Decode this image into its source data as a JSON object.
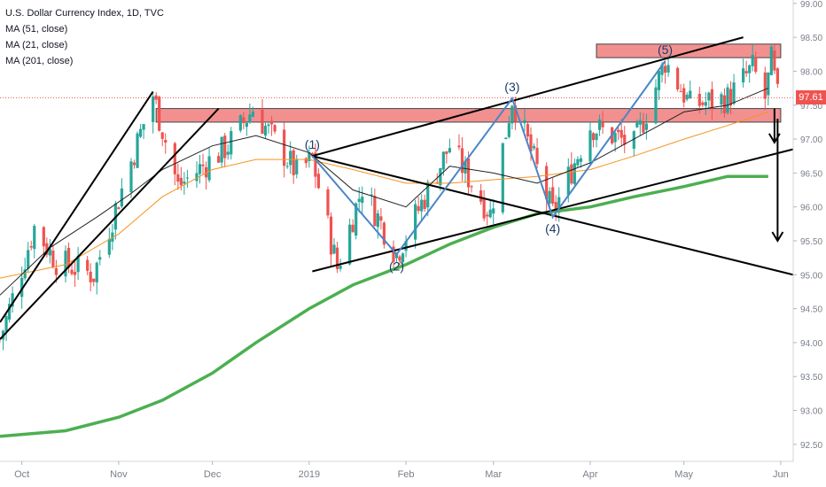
{
  "legend": {
    "title": "U.S. Dollar Currency Index, 1D, TVC",
    "ma1": "MA (51, close)",
    "ma2": "MA (21, close)",
    "ma3": "MA (201, close)"
  },
  "last_price": "97.61",
  "colors": {
    "up": "#26a69a",
    "down": "#ef5350",
    "ma51": "#f7931e",
    "ma21": "#222222",
    "ma201": "#4caf50",
    "wave": "#4a86c5",
    "zone": "#f07c7c",
    "trend": "#000000",
    "axis_text": "#7a7f8a"
  },
  "chart_data": {
    "type": "candlestick",
    "title": "U.S. Dollar Currency Index, 1D, TVC",
    "series": [
      {
        "name": "MA (51, close)",
        "style": "line",
        "color": "#f7931e",
        "x": [
          "2018-09-24",
          "2018-10-15",
          "2018-11-01",
          "2018-11-15",
          "2018-12-01",
          "2018-12-15",
          "2019-01-01",
          "2019-01-15",
          "2019-02-01",
          "2019-02-15",
          "2019-03-01",
          "2019-03-15",
          "2019-04-01",
          "2019-04-15",
          "2019-05-01",
          "2019-05-15",
          "2019-05-28"
        ],
        "y": [
          94.95,
          95.15,
          95.6,
          96.15,
          96.55,
          96.7,
          96.7,
          96.55,
          96.35,
          96.35,
          96.4,
          96.45,
          96.55,
          96.75,
          97.0,
          97.2,
          97.4
        ]
      },
      {
        "name": "MA (21, close)",
        "style": "line",
        "color": "#222222",
        "x": [
          "2018-09-24",
          "2018-10-10",
          "2018-10-25",
          "2018-11-05",
          "2018-11-15",
          "2018-12-01",
          "2018-12-15",
          "2019-01-01",
          "2019-01-15",
          "2019-02-01",
          "2019-02-15",
          "2019-03-01",
          "2019-03-15",
          "2019-04-01",
          "2019-04-15",
          "2019-05-01",
          "2019-05-15",
          "2019-05-28"
        ],
        "y": [
          94.7,
          95.4,
          95.85,
          96.2,
          96.55,
          96.9,
          97.05,
          96.8,
          96.25,
          96.0,
          96.6,
          96.5,
          96.35,
          96.65,
          97.0,
          97.4,
          97.5,
          97.75
        ]
      },
      {
        "name": "MA (201, close)",
        "style": "line",
        "color": "#4caf50",
        "x": [
          "2018-09-24",
          "2018-10-15",
          "2018-11-01",
          "2018-11-15",
          "2018-12-01",
          "2018-12-15",
          "2019-01-01",
          "2019-01-15",
          "2019-02-01",
          "2019-02-15",
          "2019-03-01",
          "2019-03-15",
          "2019-04-01",
          "2019-04-15",
          "2019-05-01",
          "2019-05-15",
          "2019-05-28"
        ],
        "y": [
          92.62,
          92.7,
          92.9,
          93.15,
          93.55,
          94.0,
          94.5,
          94.85,
          95.15,
          95.45,
          95.7,
          95.9,
          96.0,
          96.15,
          96.3,
          96.45,
          96.45
        ]
      }
    ],
    "waves": [
      {
        "label": "(1)",
        "x": "2019-01-02",
        "y": 96.75
      },
      {
        "label": "(2)",
        "x": "2019-01-29",
        "y": 95.3
      },
      {
        "label": "(3)",
        "x": "2019-03-07",
        "y": 97.6
      },
      {
        "label": "(4)",
        "x": "2019-03-20",
        "y": 95.85
      },
      {
        "label": "(5)",
        "x": "2019-04-25",
        "y": 98.15
      }
    ],
    "resistance_zones": [
      {
        "x": [
          "2018-11-13",
          "2019-06-01"
        ],
        "y": [
          97.25,
          97.45
        ]
      },
      {
        "x": [
          "2019-04-03",
          "2019-06-01"
        ],
        "y": [
          98.2,
          98.4
        ]
      }
    ],
    "xlabel": "",
    "ylabel": "",
    "x_ticks": [
      "Oct",
      "Nov",
      "Dec",
      "2019",
      "Feb",
      "Mar",
      "Apr",
      "May",
      "Jun"
    ],
    "y_ticks": [
      "92.50",
      "93.00",
      "93.50",
      "94.00",
      "94.50",
      "95.00",
      "95.50",
      "96.00",
      "96.50",
      "97.00",
      "97.50",
      "98.00",
      "98.50",
      "99.00"
    ],
    "ylim": [
      92.25,
      99.05
    ],
    "xlim": [
      "2018-09-24",
      "2019-06-05"
    ],
    "last_value": 97.61,
    "grid": false,
    "legend": "top-left"
  }
}
